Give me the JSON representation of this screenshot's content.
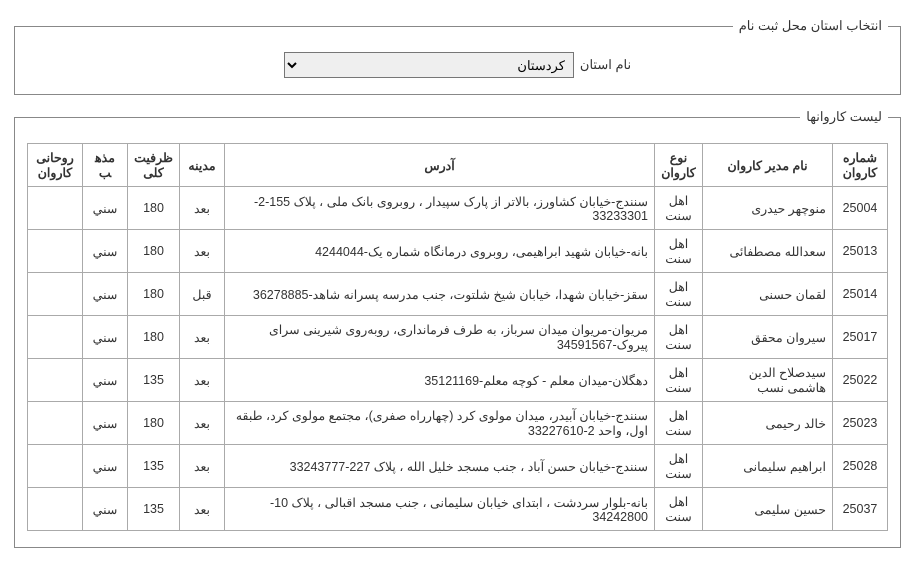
{
  "province_section": {
    "legend": "انتخاب استان محل ثبت نام",
    "label": "نام استان",
    "selected": "کردستان",
    "options": [
      "کردستان"
    ]
  },
  "caravans_section": {
    "legend": "لیست کاروانها",
    "headers": {
      "number": "شماره کاروان",
      "manager": "نام مدیر کاروان",
      "type": "نوع کاروان",
      "address": "آدرس",
      "madineh": "مدینه",
      "capacity": "ظرفیت کلی",
      "religion": "مذهب",
      "cleric": "روحانی کاروان"
    },
    "rows": [
      {
        "number": "25004",
        "manager": "منوچهر حیدری",
        "type": "اهل سنت",
        "address": "سنندج-خیابان کشاورز، بالاتر از پارک سپیدار ، روبروی بانک ملی ، پلاک 155-2-33233301",
        "madineh": "بعد",
        "capacity": "180",
        "religion": "سني",
        "cleric": ""
      },
      {
        "number": "25013",
        "manager": "سعدالله مصطفائی",
        "type": "اهل سنت",
        "address": "بانه-خیابان شهید ابراهیمی، روبروی درمانگاه شماره یک-4244044",
        "madineh": "بعد",
        "capacity": "180",
        "religion": "سني",
        "cleric": ""
      },
      {
        "number": "25014",
        "manager": "لقمان حسنی",
        "type": "اهل سنت",
        "address": "سقز-خیابان شهدا، خیابان شیخ شلتوت، جنب مدرسه پسرانه شاهد-36278885",
        "madineh": "قبل",
        "capacity": "180",
        "religion": "سني",
        "cleric": ""
      },
      {
        "number": "25017",
        "manager": "سیروان محقق",
        "type": "اهل سنت",
        "address": "مریوان-مریوان میدان سرباز، به طرف فرمانداری، روبه‌روی شیرینی سرای پیروک-34591567",
        "madineh": "بعد",
        "capacity": "180",
        "religion": "سني",
        "cleric": ""
      },
      {
        "number": "25022",
        "manager": "سیدصلاح الدین هاشمی نسب",
        "type": "اهل سنت",
        "address": "دهگلان-میدان معلم - کوچه معلم-35121169",
        "madineh": "بعد",
        "capacity": "135",
        "religion": "سني",
        "cleric": ""
      },
      {
        "number": "25023",
        "manager": "خالد رحیمی",
        "type": "اهل سنت",
        "address": "سنندج-خیابان آبیدر، میدان مولوی کرد (چهارراه صفری)، مجتمع مولوی کرد، طبقه اول، واحد 2-33227610",
        "madineh": "بعد",
        "capacity": "180",
        "religion": "سني",
        "cleric": ""
      },
      {
        "number": "25028",
        "manager": "ابراهیم سلیمانی",
        "type": "اهل سنت",
        "address": "سنندج-خیابان حسن آباد ، جنب مسجد خلیل الله ، پلاک 227-33243777",
        "madineh": "بعد",
        "capacity": "135",
        "religion": "سني",
        "cleric": ""
      },
      {
        "number": "25037",
        "manager": "حسین سلیمی",
        "type": "اهل سنت",
        "address": "بانه-بلوار سردشت ، ابتدای خیابان سلیمانی ، جنب مسجد اقبالی ، پلاک 10-34242800",
        "madineh": "بعد",
        "capacity": "135",
        "religion": "سني",
        "cleric": ""
      }
    ]
  }
}
